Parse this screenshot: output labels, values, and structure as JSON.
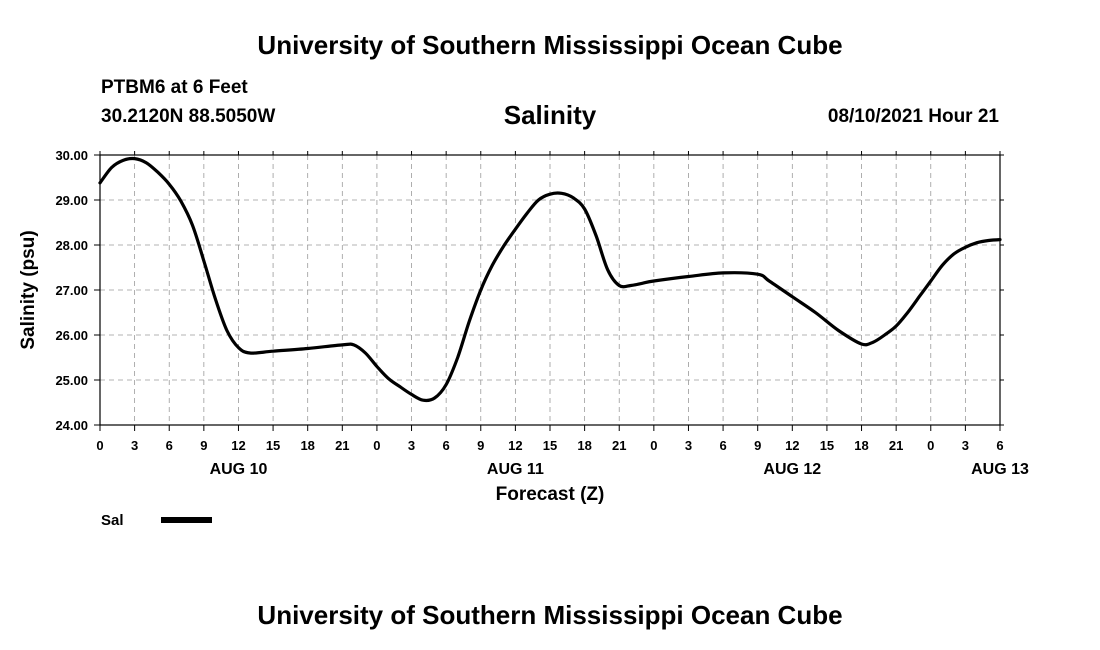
{
  "header": {
    "title": "University of Southern Mississippi Ocean Cube",
    "station": "PTBM6 at 6 Feet",
    "coords": "30.2120N  88.5050W",
    "datetime": "08/10/2021 Hour 21"
  },
  "footer": {
    "title": "University of Southern Mississippi Ocean Cube"
  },
  "chart_data": {
    "type": "line",
    "title": "Salinity",
    "xlabel": "Forecast (Z)",
    "ylabel": "Salinity (psu)",
    "ylim": [
      24.0,
      30.0
    ],
    "xlim": [
      0,
      78
    ],
    "grid": true,
    "y_ticks": [
      "24.00",
      "25.00",
      "26.00",
      "27.00",
      "28.00",
      "29.00",
      "30.00"
    ],
    "x_ticks": [
      "0",
      "3",
      "6",
      "9",
      "12",
      "15",
      "18",
      "21",
      "0",
      "3",
      "6",
      "9",
      "12",
      "15",
      "18",
      "21",
      "0",
      "3",
      "6",
      "9",
      "12",
      "15",
      "18",
      "21",
      "0",
      "3",
      "6"
    ],
    "day_labels": [
      {
        "label": "AUG 10",
        "hour": 12
      },
      {
        "label": "AUG 11",
        "hour": 36
      },
      {
        "label": "AUG 12",
        "hour": 60
      },
      {
        "label": "AUG 13",
        "hour": 78
      }
    ],
    "legend": {
      "label": "Sal",
      "position": "bottom-left"
    },
    "series": [
      {
        "name": "Sal",
        "color": "#000000",
        "x": [
          0,
          1,
          2,
          3,
          4,
          5,
          6,
          7,
          8,
          9,
          10,
          11,
          12,
          13,
          15,
          18,
          21,
          22,
          23,
          24,
          25,
          26,
          27,
          28,
          29,
          30,
          31,
          32,
          33,
          34,
          35,
          36,
          37,
          38,
          39,
          40,
          41,
          42,
          43,
          44,
          45,
          46,
          47,
          48,
          51,
          54,
          57,
          58,
          60,
          62,
          64,
          66,
          67,
          68,
          69,
          70,
          71,
          72,
          73,
          74,
          75,
          76,
          77,
          78
        ],
        "values": [
          29.38,
          29.72,
          29.88,
          29.92,
          29.83,
          29.62,
          29.35,
          28.98,
          28.45,
          27.65,
          26.8,
          26.1,
          25.72,
          25.6,
          25.64,
          25.7,
          25.78,
          25.78,
          25.6,
          25.3,
          25.03,
          24.85,
          24.68,
          24.55,
          24.6,
          24.9,
          25.5,
          26.3,
          27.0,
          27.55,
          27.98,
          28.35,
          28.7,
          29.0,
          29.13,
          29.15,
          29.05,
          28.8,
          28.2,
          27.45,
          27.1,
          27.1,
          27.15,
          27.2,
          27.3,
          27.38,
          27.35,
          27.2,
          26.85,
          26.5,
          26.1,
          25.8,
          25.84,
          26.0,
          26.2,
          26.5,
          26.85,
          27.2,
          27.55,
          27.8,
          27.95,
          28.05,
          28.1,
          28.12
        ]
      }
    ]
  }
}
